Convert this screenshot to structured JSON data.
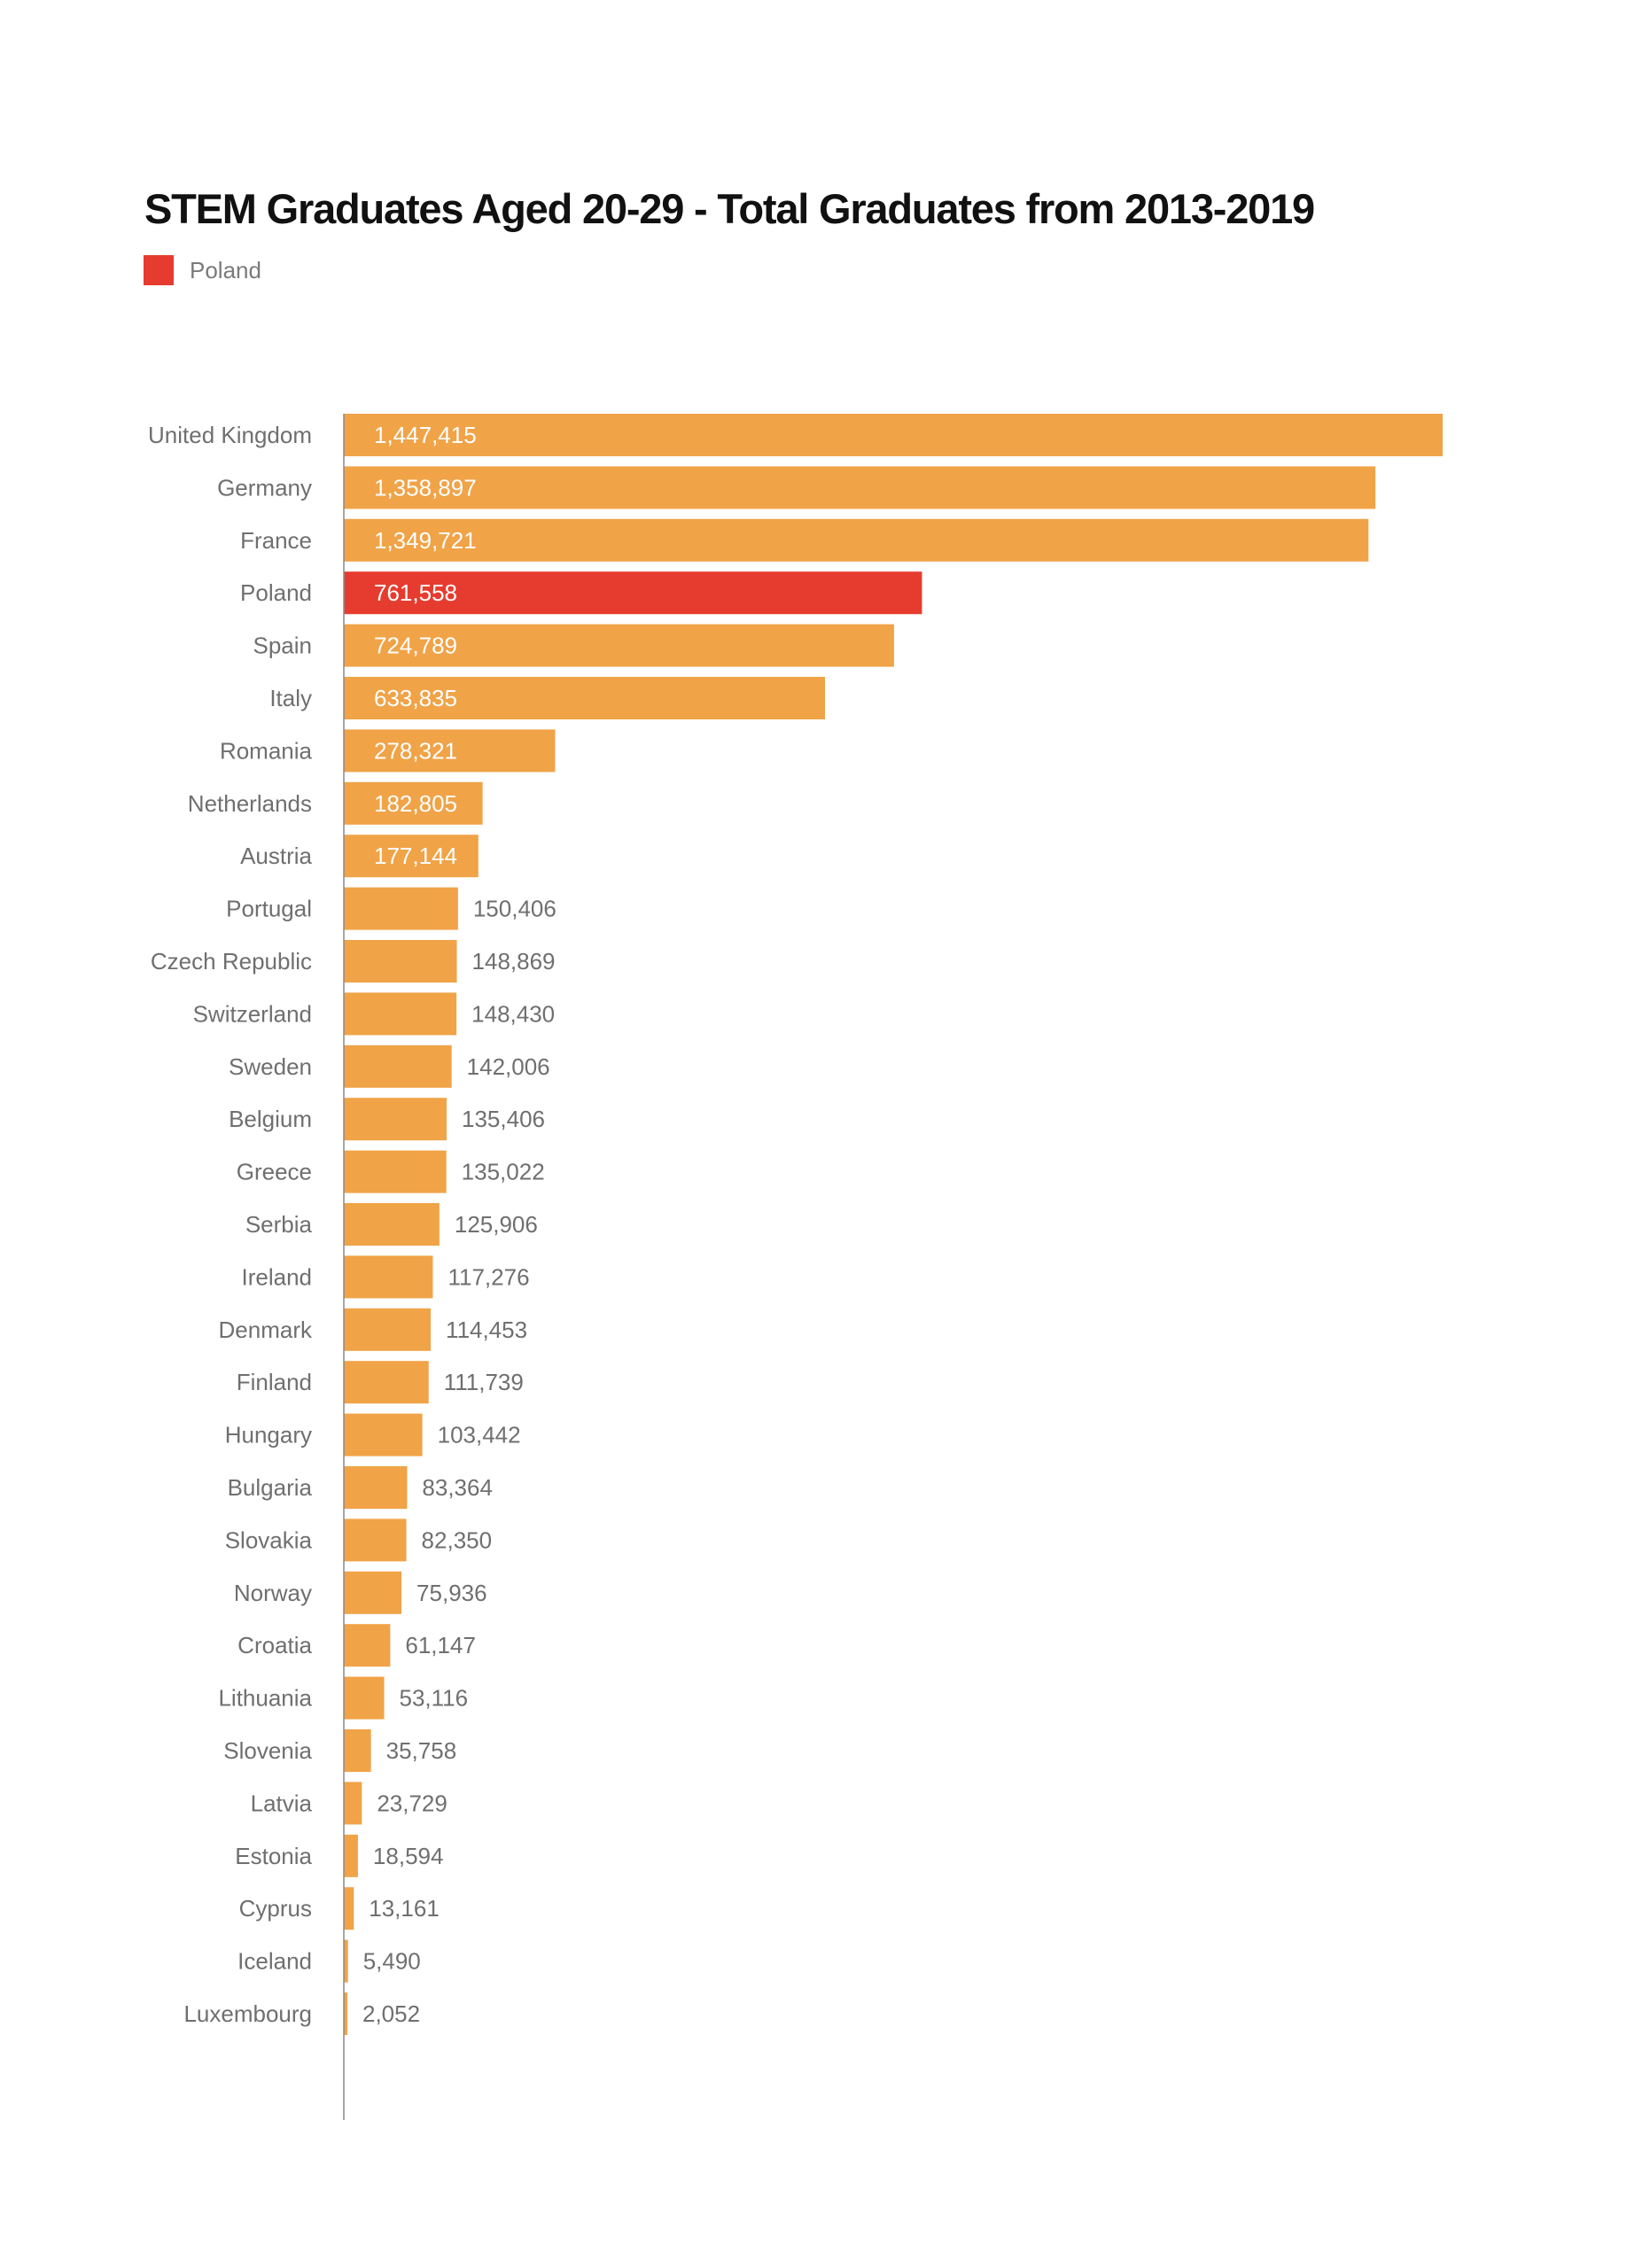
{
  "chart_data": {
    "type": "bar",
    "orientation": "horizontal",
    "title": "STEM Graduates Aged 20-29 - Total Graduates from 2013-2019",
    "legend": [
      {
        "label": "Poland",
        "color": "#E63C2F"
      }
    ],
    "legend_placement": "top-left",
    "xlabel": "",
    "ylabel": "",
    "grid": false,
    "xlim": [
      0,
      1447415
    ],
    "colors": {
      "default": "#F0A347",
      "highlight": "#E63C2F"
    },
    "highlight": "Poland",
    "categories": [
      "United Kingdom",
      "Germany",
      "France",
      "Poland",
      "Spain",
      "Italy",
      "Romania",
      "Netherlands",
      "Austria",
      "Portugal",
      "Czech Republic",
      "Switzerland",
      "Sweden",
      "Belgium",
      "Greece",
      "Serbia",
      "Ireland",
      "Denmark",
      "Finland",
      "Hungary",
      "Bulgaria",
      "Slovakia",
      "Norway",
      "Croatia",
      "Lithuania",
      "Slovenia",
      "Latvia",
      "Estonia",
      "Cyprus",
      "Iceland",
      "Luxembourg"
    ],
    "values": [
      1447415,
      1358897,
      1349721,
      761558,
      724789,
      633835,
      278321,
      182805,
      177144,
      150406,
      148869,
      148430,
      142006,
      135406,
      135022,
      125906,
      117276,
      114453,
      111739,
      103442,
      83364,
      82350,
      75936,
      61147,
      53116,
      35758,
      23729,
      18594,
      13161,
      5490,
      2052
    ],
    "value_labels": [
      "1,447,415",
      "1,358,897",
      "1,349,721",
      "761,558",
      "724,789",
      "633,835",
      "278,321",
      "182,805",
      "177,144",
      "150,406",
      "148,869",
      "148,430",
      "142,006",
      "135,406",
      "135,022",
      "125,906",
      "117,276",
      "114,453",
      "111,739",
      "103,442",
      "83,364",
      "82,350",
      "75,936",
      "61,147",
      "53,116",
      "35,758",
      "23,729",
      "18,594",
      "13,161",
      "5,490",
      "2,052"
    ]
  }
}
